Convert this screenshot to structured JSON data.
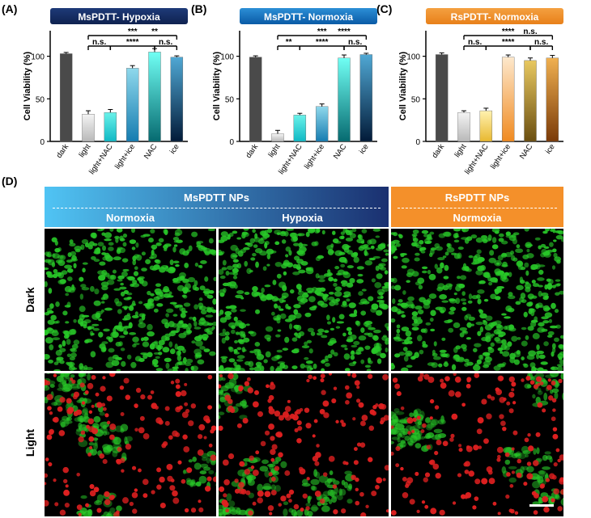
{
  "panel_labels": {
    "a": "(A)",
    "b": "(B)",
    "c": "(C)",
    "d": "(D)"
  },
  "chart_data": [
    {
      "type": "bar",
      "title": "MsPDTT- Hypoxia",
      "title_bg": [
        "#1e3a78",
        "#0f2250"
      ],
      "ylabel": "Cell Viability (%)",
      "ylim": [
        0,
        130
      ],
      "yticks": [
        0,
        50,
        100
      ],
      "categories": [
        "dark",
        "light",
        "light+NAC",
        "light+ice",
        "NAC",
        "ice"
      ],
      "values": [
        103,
        32,
        34,
        86,
        105,
        99
      ],
      "errors": [
        1.5,
        4,
        3.5,
        3,
        4,
        1.5
      ],
      "bar_colors": [
        [
          "#4a4a4a",
          "#4a4a4a"
        ],
        [
          "#f4f4f4",
          "#b8b8b8"
        ],
        [
          "#6af2ea",
          "#0fb8c4"
        ],
        [
          "#8fd8ec",
          "#157cb0"
        ],
        [
          "#70fff4",
          "#066a70"
        ],
        [
          "#50a8d4",
          "#021a38"
        ]
      ],
      "significance": [
        {
          "from": 1,
          "to": 5,
          "label": "***",
          "level": 0
        },
        {
          "from": 1,
          "to": 2,
          "label": "n.s.",
          "level": 1
        },
        {
          "from": 2,
          "to": 4,
          "label": "****",
          "level": 1
        },
        {
          "from": 4,
          "to": 5,
          "label": "n.s.",
          "level": 1
        },
        {
          "from": 3,
          "to": 5,
          "label": "**",
          "level": 0,
          "label_only": true
        }
      ]
    },
    {
      "type": "bar",
      "title": "MsPDTT- Normoxia",
      "title_bg": [
        "#2c8fd6",
        "#0a5aa6"
      ],
      "ylabel": "Cell Viability (%)",
      "ylim": [
        0,
        130
      ],
      "yticks": [
        0,
        50,
        100
      ],
      "categories": [
        "dark",
        "light",
        "light+NAC",
        "light+ice",
        "NAC",
        "ice"
      ],
      "values": [
        99,
        9,
        31,
        41,
        98,
        102
      ],
      "errors": [
        1.5,
        4,
        2,
        3,
        3.5,
        1.5
      ],
      "bar_colors": [
        [
          "#4a4a4a",
          "#4a4a4a"
        ],
        [
          "#f4f4f4",
          "#b8b8b8"
        ],
        [
          "#6af2ea",
          "#0fb8c4"
        ],
        [
          "#8fd8ec",
          "#157cb0"
        ],
        [
          "#70fff4",
          "#066a70"
        ],
        [
          "#50a8d4",
          "#021a38"
        ]
      ],
      "significance": [
        {
          "from": 1,
          "to": 5,
          "label": "***",
          "level": 0
        },
        {
          "from": 1,
          "to": 2,
          "label": "**",
          "level": 1
        },
        {
          "from": 2,
          "to": 4,
          "label": "****",
          "level": 1
        },
        {
          "from": 4,
          "to": 5,
          "label": "n.s.",
          "level": 1
        },
        {
          "from": 3,
          "to": 5,
          "label": "****",
          "level": 0,
          "label_only": true
        }
      ]
    },
    {
      "type": "bar",
      "title": "RsPDTT- Normoxia",
      "title_bg": [
        "#f4a040",
        "#e8801a"
      ],
      "ylabel": "Cell Viability (%)",
      "ylim": [
        0,
        130
      ],
      "yticks": [
        0,
        50,
        100
      ],
      "categories": [
        "dark",
        "light",
        "light+NAC",
        "light+ice",
        "NAC",
        "ice"
      ],
      "values": [
        102,
        34,
        36,
        99,
        95,
        98
      ],
      "errors": [
        2,
        2,
        3,
        2.5,
        3,
        3
      ],
      "bar_colors": [
        [
          "#4a4a4a",
          "#4a4a4a"
        ],
        [
          "#f4f4f4",
          "#b8b8b8"
        ],
        [
          "#fff2b0",
          "#e8b830"
        ],
        [
          "#fde8cc",
          "#f08a20"
        ],
        [
          "#e8c860",
          "#6a4e10"
        ],
        [
          "#f0b050",
          "#7a3a08"
        ]
      ],
      "significance": [
        {
          "from": 1,
          "to": 5,
          "label": "****",
          "level": 0
        },
        {
          "from": 1,
          "to": 2,
          "label": "n.s.",
          "level": 1
        },
        {
          "from": 2,
          "to": 4,
          "label": "****",
          "level": 1
        },
        {
          "from": 4,
          "to": 5,
          "label": "n.s.",
          "level": 1
        },
        {
          "from": 3,
          "to": 5,
          "label": "n.s.",
          "level": 0,
          "label_only": true
        }
      ]
    }
  ],
  "panel_d": {
    "ms_banner": {
      "title": "MsPDTT NPs",
      "sub_left": "Normoxia",
      "sub_right": "Hypoxia",
      "colors": [
        "#50c4f4",
        "#1a3070"
      ]
    },
    "rs_banner": {
      "title": "RsPDTT NPs",
      "sub": "Normoxia",
      "color": "#f4902a"
    },
    "rows": [
      "Dark",
      "Light"
    ],
    "images": [
      {
        "row": "Dark",
        "col": "MsPDTT NPs Normoxia",
        "kind": "dark"
      },
      {
        "row": "Dark",
        "col": "MsPDTT NPs Hypoxia",
        "kind": "dark"
      },
      {
        "row": "Dark",
        "col": "RsPDTT NPs Normoxia",
        "kind": "dark"
      },
      {
        "row": "Light",
        "col": "MsPDTT NPs Normoxia",
        "kind": "light"
      },
      {
        "row": "Light",
        "col": "MsPDTT NPs Hypoxia",
        "kind": "light"
      },
      {
        "row": "Light",
        "col": "RsPDTT NPs Normoxia",
        "kind": "light"
      }
    ],
    "colors": {
      "live": "#28c828",
      "dead": "#e02020",
      "background": "#000000"
    }
  }
}
